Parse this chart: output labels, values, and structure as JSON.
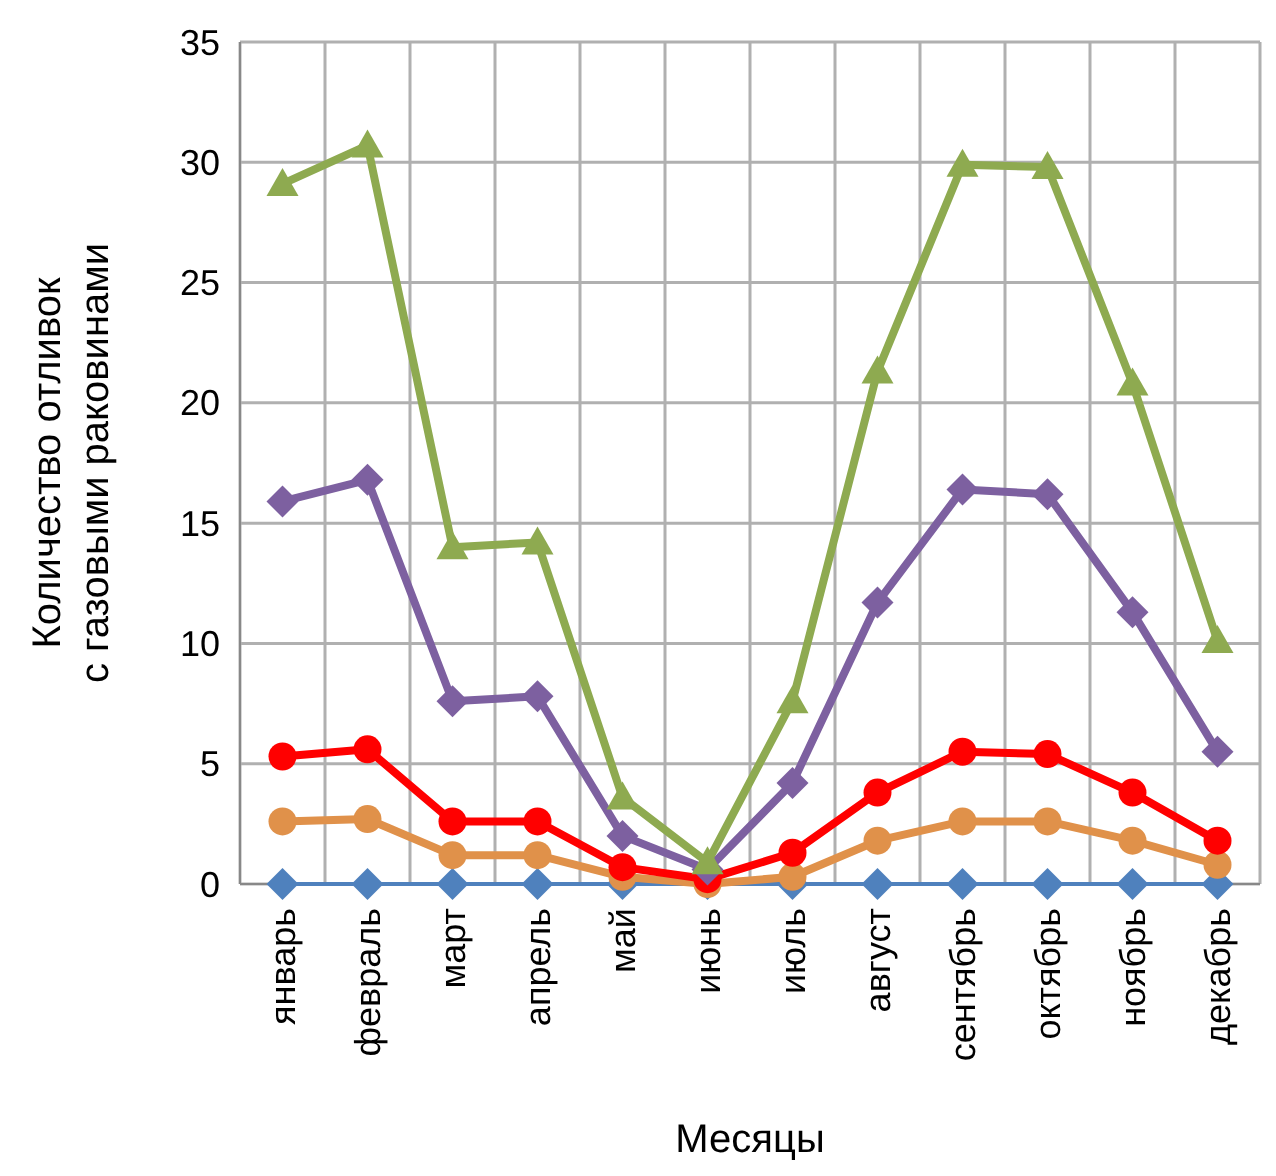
{
  "chart_data": {
    "type": "line",
    "xlabel": "Месяцы",
    "ylabel": "Количество отливок\nс газовыми раковинами",
    "categories": [
      "январь",
      "февраль",
      "март",
      "апрель",
      "май",
      "июнь",
      "июль",
      "август",
      "сентябрь",
      "октябрь",
      "ноябрь",
      "декабрь"
    ],
    "ylim": [
      0,
      35
    ],
    "yticks": [
      0,
      5,
      10,
      15,
      20,
      25,
      30,
      35
    ],
    "grid": true,
    "series": [
      {
        "color": "#4f81bd",
        "marker": "diamond",
        "values": [
          0,
          0,
          0,
          0,
          0,
          0,
          0,
          0,
          0,
          0,
          0,
          0
        ]
      },
      {
        "color": "#e0914a",
        "marker": "circle",
        "values": [
          2.6,
          2.7,
          1.2,
          1.2,
          0.3,
          0,
          0.3,
          1.8,
          2.6,
          2.6,
          1.8,
          0.8
        ]
      },
      {
        "color": "#ff0000",
        "marker": "circle",
        "values": [
          5.3,
          5.6,
          2.6,
          2.6,
          0.7,
          0.2,
          1.3,
          3.8,
          5.5,
          5.4,
          3.8,
          1.8
        ]
      },
      {
        "color": "#7d60a0",
        "marker": "diamond",
        "values": [
          15.9,
          16.8,
          7.6,
          7.8,
          2,
          0.6,
          4.2,
          11.7,
          16.4,
          16.2,
          11.3,
          5.5
        ]
      },
      {
        "color": "#8eaa50",
        "marker": "triangle",
        "values": [
          29.1,
          30.7,
          14,
          14.2,
          3.6,
          0.9,
          7.6,
          21.3,
          29.9,
          29.8,
          20.8,
          10.1
        ]
      }
    ]
  }
}
